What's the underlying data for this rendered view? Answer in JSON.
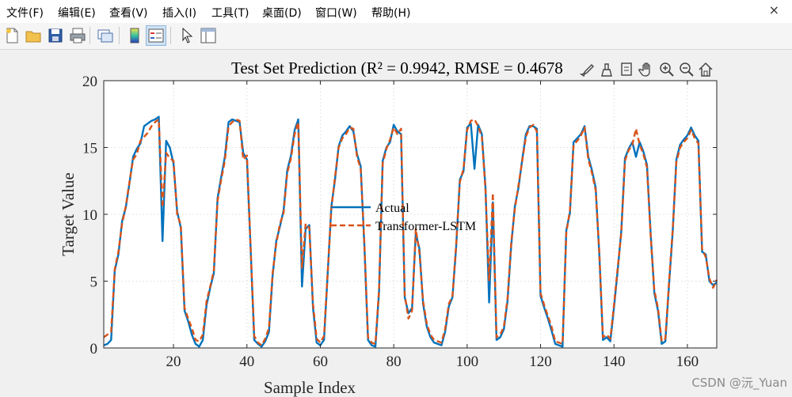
{
  "menu": [
    "文件(F)",
    "编辑(E)",
    "查看(V)",
    "插入(I)",
    "工具(T)",
    "桌面(D)",
    "窗口(W)",
    "帮助(H)"
  ],
  "window": {
    "close_glyph": "×"
  },
  "toolbar": {
    "icons": [
      "new-figure-icon",
      "open-file-icon",
      "save-icon",
      "print-icon",
      "link-plot-icon",
      "colorbar-icon",
      "legend-icon",
      "pointer-icon",
      "property-inspector-icon"
    ]
  },
  "axes_toolbar": {
    "icons": [
      "brush-icon",
      "data-tips-icon",
      "datacursor-icon",
      "pan-icon",
      "zoom-in-icon",
      "zoom-out-icon",
      "home-icon"
    ]
  },
  "watermark": "CSDN @沅_Yuan",
  "colors": {
    "actual": "#0072BD",
    "predicted": "#D95319"
  },
  "chart_data": {
    "type": "line",
    "title": "Test Set Prediction (R² = 0.9942, RMSE = 0.4678",
    "xlabel": "Sample Index",
    "ylabel": "Target Value",
    "xlim": [
      1,
      168
    ],
    "ylim": [
      0,
      20
    ],
    "xticks": [
      20,
      40,
      60,
      80,
      100,
      120,
      140,
      160
    ],
    "yticks": [
      0,
      5,
      10,
      15,
      20
    ],
    "grid": true,
    "legend_position": "center",
    "series": [
      {
        "name": "Actual",
        "style": "solid",
        "values": [
          0.2,
          0.3,
          0.6,
          5.8,
          7.0,
          9.5,
          10.5,
          12.3,
          14.3,
          14.9,
          15.3,
          16.6,
          16.8,
          17.0,
          17.1,
          17.3,
          8.0,
          15.5,
          15.0,
          13.8,
          10.2,
          9.0,
          2.8,
          2.0,
          1.0,
          0.3,
          0.1,
          0.6,
          3.2,
          4.5,
          5.6,
          11.2,
          12.8,
          14.3,
          16.9,
          17.1,
          17.0,
          16.9,
          14.6,
          14.1,
          7.5,
          0.6,
          0.3,
          0.1,
          0.5,
          1.2,
          5.4,
          8.0,
          9.1,
          10.3,
          13.3,
          14.4,
          16.3,
          17.1,
          4.6,
          8.9,
          9.2,
          3.0,
          0.4,
          0.2,
          0.6,
          5.5,
          10.6,
          12.6,
          15.1,
          15.9,
          16.2,
          16.6,
          16.2,
          14.5,
          13.6,
          7.6,
          0.6,
          0.2,
          0.1,
          4.2,
          14.0,
          15.0,
          15.4,
          16.7,
          16.2,
          16.0,
          3.8,
          2.6,
          3.0,
          8.6,
          7.4,
          3.3,
          1.6,
          0.8,
          0.4,
          0.3,
          0.2,
          1.2,
          3.1,
          3.8,
          7.5,
          12.6,
          13.2,
          16.5,
          16.8,
          13.4,
          16.7,
          16.0,
          12.0,
          3.4,
          10.9,
          0.6,
          0.8,
          1.4,
          3.5,
          7.7,
          10.6,
          12.0,
          14.1,
          16.0,
          16.6,
          16.6,
          16.4,
          3.9,
          3.0,
          2.2,
          1.3,
          0.3,
          0.2,
          0.1,
          8.8,
          10.1,
          15.4,
          15.7,
          16.0,
          16.6,
          14.3,
          13.3,
          12.0,
          7.0,
          0.6,
          0.8,
          0.5,
          3.0,
          5.8,
          8.8,
          14.2,
          14.9,
          15.4,
          14.3,
          15.4,
          14.7,
          13.7,
          8.5,
          4.1,
          2.8,
          0.3,
          0.5,
          4.7,
          8.7,
          14.1,
          15.2,
          15.6,
          15.9,
          16.5,
          15.9,
          15.5,
          7.2,
          7.0,
          5.0,
          4.7,
          4.9
        ]
      },
      {
        "name": "Transformer-LSTM",
        "style": "dashed",
        "values": [
          0.8,
          1.0,
          1.2,
          5.9,
          7.2,
          9.3,
          10.6,
          12.4,
          14.1,
          14.5,
          15.5,
          15.8,
          16.1,
          16.6,
          16.9,
          17.1,
          10.5,
          14.6,
          14.2,
          14.0,
          10.0,
          9.2,
          3.0,
          2.2,
          1.5,
          0.6,
          0.5,
          1.0,
          3.5,
          4.6,
          5.8,
          11.0,
          12.6,
          14.0,
          16.6,
          16.9,
          17.1,
          17.0,
          14.1,
          14.4,
          7.6,
          0.9,
          0.4,
          0.2,
          0.7,
          1.5,
          5.6,
          7.8,
          9.3,
          10.1,
          13.1,
          14.2,
          16.0,
          16.9,
          6.0,
          9.3,
          9.0,
          3.3,
          0.7,
          0.4,
          0.9,
          5.6,
          10.4,
          12.8,
          15.0,
          15.7,
          16.0,
          16.5,
          16.4,
          14.3,
          13.4,
          7.8,
          0.8,
          0.4,
          0.3,
          4.4,
          13.8,
          14.9,
          15.6,
          16.5,
          16.0,
          16.4,
          4.0,
          2.2,
          2.8,
          8.9,
          7.1,
          3.5,
          1.8,
          1.0,
          0.6,
          0.5,
          0.4,
          1.4,
          3.3,
          3.9,
          7.7,
          12.4,
          13.4,
          16.3,
          17.0,
          17.1,
          16.6,
          15.8,
          11.8,
          5.0,
          11.6,
          0.8,
          1.0,
          1.6,
          3.7,
          7.9,
          10.4,
          12.2,
          14.0,
          15.8,
          16.5,
          16.7,
          16.2,
          4.1,
          3.2,
          2.4,
          1.6,
          0.5,
          0.4,
          0.3,
          8.6,
          10.3,
          15.2,
          15.5,
          15.9,
          16.5,
          14.1,
          13.1,
          11.8,
          7.2,
          0.8,
          1.0,
          0.7,
          3.2,
          6.0,
          8.6,
          14.0,
          14.8,
          15.2,
          16.4,
          15.2,
          14.5,
          13.5,
          8.3,
          4.3,
          3.0,
          0.5,
          0.7,
          4.9,
          8.9,
          13.9,
          15.0,
          15.4,
          15.7,
          16.3,
          15.7,
          15.3,
          7.4,
          6.8,
          5.2,
          4.5,
          5.1
        ]
      }
    ]
  }
}
